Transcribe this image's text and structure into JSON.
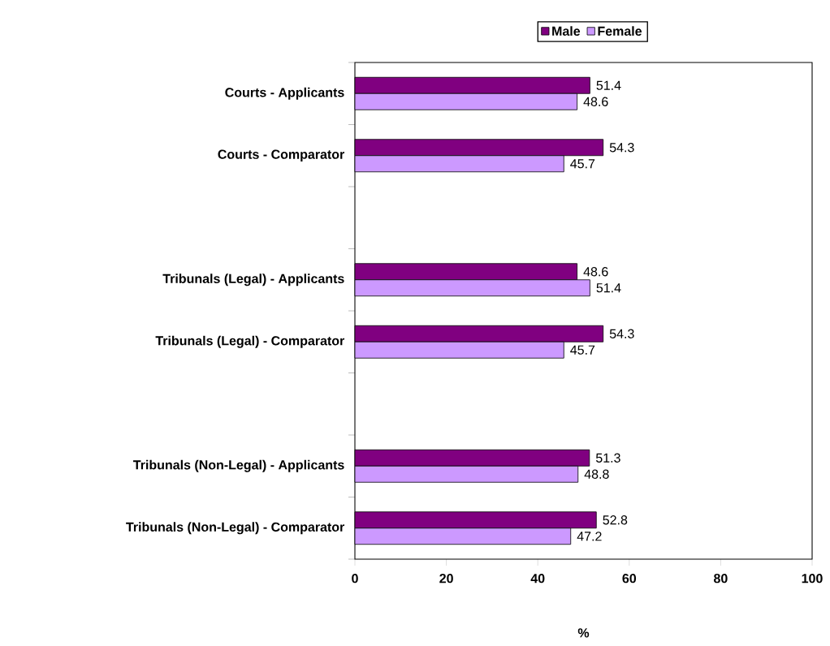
{
  "chart_data": {
    "type": "bar",
    "orientation": "horizontal",
    "xlabel": "%",
    "categories": [
      "Courts - Applicants",
      "Courts - Comparator",
      null,
      "Tribunals (Legal) - Applicants",
      "Tribunals (Legal) - Comparator",
      null,
      "Tribunals (Non-Legal) - Applicants",
      "Tribunals (Non-Legal) - Comparator"
    ],
    "series": [
      {
        "name": "Male",
        "color": "#800080",
        "values": [
          51.4,
          54.3,
          null,
          48.6,
          54.3,
          null,
          51.3,
          52.8
        ]
      },
      {
        "name": "Female",
        "color": "#cc99ff",
        "values": [
          48.6,
          45.7,
          null,
          51.4,
          45.7,
          null,
          48.8,
          47.2
        ]
      }
    ],
    "xlim": [
      0,
      100
    ],
    "xticks": [
      0,
      20,
      40,
      60,
      80,
      100
    ],
    "data_labels": true,
    "legend": "top",
    "grid": false
  }
}
